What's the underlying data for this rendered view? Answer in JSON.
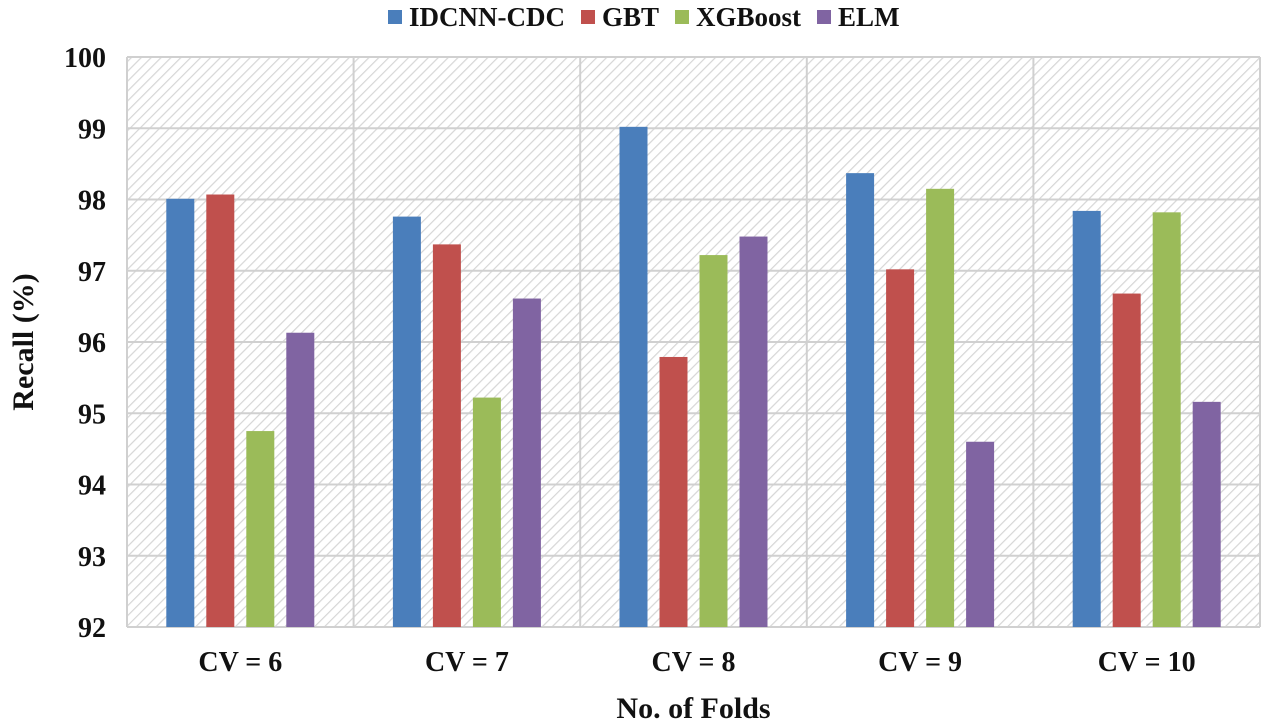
{
  "chart_data": {
    "type": "bar",
    "title": "",
    "xlabel": "No. of Folds",
    "ylabel": "Recall (%)",
    "categories": [
      "CV = 6",
      "CV = 7",
      "CV = 8",
      "CV = 9",
      "CV = 10"
    ],
    "series": [
      {
        "name": "IDCNN-CDC",
        "color": "#4a7ebb",
        "values": [
          98.01,
          97.76,
          99.02,
          98.37,
          97.84
        ]
      },
      {
        "name": "GBT",
        "color": "#c0504d",
        "values": [
          98.07,
          97.37,
          95.79,
          97.02,
          96.68
        ]
      },
      {
        "name": "XGBoost",
        "color": "#9bbb59",
        "values": [
          94.75,
          95.22,
          97.22,
          98.15,
          97.82
        ]
      },
      {
        "name": "ELM",
        "color": "#8064a2",
        "values": [
          96.13,
          96.61,
          97.48,
          94.6,
          95.16
        ]
      }
    ],
    "ylim": [
      92,
      100
    ],
    "yticks": [
      "92",
      "93",
      "94",
      "95",
      "96",
      "97",
      "98",
      "99",
      "100"
    ],
    "grid": true,
    "legend": "top"
  }
}
